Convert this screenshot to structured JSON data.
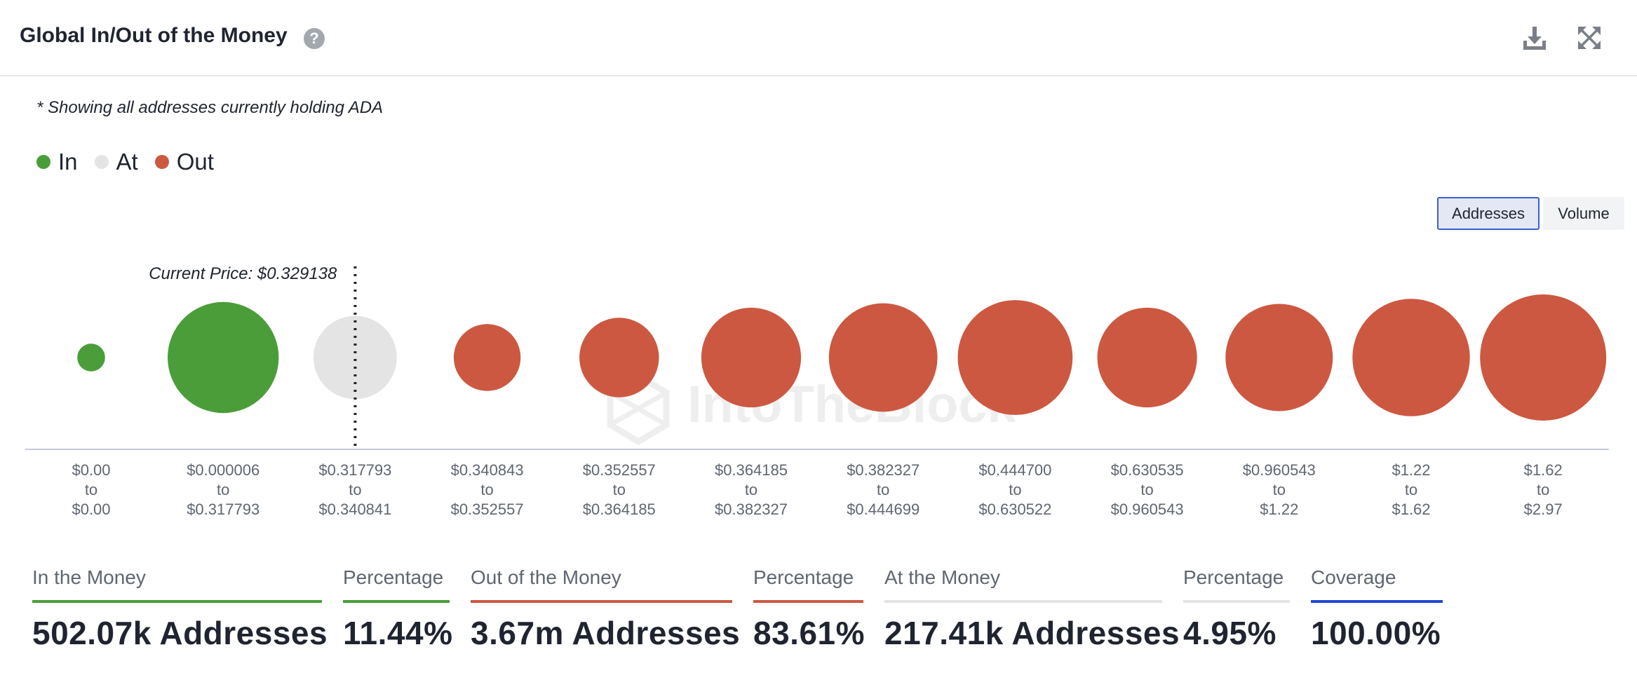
{
  "header": {
    "title": "Global In/Out of the Money",
    "help_glyph": "?"
  },
  "icons": {
    "help": "question-circle-icon",
    "download": "download-icon",
    "fullscreen": "expand-arrows-icon"
  },
  "note": "* Showing all addresses currently holding ADA",
  "legend": [
    {
      "label": "In",
      "color": "#4a9d39"
    },
    {
      "label": "At",
      "color": "#e4e4e4"
    },
    {
      "label": "Out",
      "color": "#cc5841"
    }
  ],
  "toggle": {
    "addresses": "Addresses",
    "volume": "Volume",
    "selected": "Addresses"
  },
  "watermark": "IntoTheBlock",
  "chart_data": {
    "type": "bubble",
    "current_price_label": "Current Price: $0.329138",
    "current_price": 0.329138,
    "current_price_bucket_index": 2,
    "value_dimension": "Addresses (relative bubble size, estimated)",
    "buckets": [
      {
        "from": "$0.00",
        "to": "$0.00",
        "status": "In",
        "relative_size": 0.22
      },
      {
        "from": "$0.000006",
        "to": "$0.317793",
        "status": "In",
        "relative_size": 0.88
      },
      {
        "from": "$0.317793",
        "to": "$0.340841",
        "status": "At",
        "relative_size": 0.66
      },
      {
        "from": "$0.340843",
        "to": "$0.352557",
        "status": "Out",
        "relative_size": 0.53
      },
      {
        "from": "$0.352557",
        "to": "$0.364185",
        "status": "Out",
        "relative_size": 0.63
      },
      {
        "from": "$0.364185",
        "to": "$0.382327",
        "status": "Out",
        "relative_size": 0.79
      },
      {
        "from": "$0.382327",
        "to": "$0.444699",
        "status": "Out",
        "relative_size": 0.86
      },
      {
        "from": "$0.444700",
        "to": "$0.630522",
        "status": "Out",
        "relative_size": 0.91
      },
      {
        "from": "$0.630535",
        "to": "$0.960543",
        "status": "Out",
        "relative_size": 0.79
      },
      {
        "from": "$0.960543",
        "to": "$1.22",
        "status": "Out",
        "relative_size": 0.85
      },
      {
        "from": "$1.22",
        "to": "$1.62",
        "status": "Out",
        "relative_size": 0.93
      },
      {
        "from": "$1.62",
        "to": "$2.97",
        "status": "Out",
        "relative_size": 1.0
      }
    ],
    "range_joiner": "to",
    "colors": {
      "In": "#4a9d39",
      "At": "#e4e4e4",
      "Out": "#cc5841"
    }
  },
  "stats": [
    {
      "label": "In the Money",
      "value": "502.07k Addresses",
      "color": "#4a9d39"
    },
    {
      "label": "Percentage",
      "value": "11.44%",
      "color": "#4a9d39"
    },
    {
      "label": "Out of the Money",
      "value": "3.67m Addresses",
      "color": "#cc5841"
    },
    {
      "label": "Percentage",
      "value": "83.61%",
      "color": "#cc5841"
    },
    {
      "label": "At the Money",
      "value": "217.41k Addresses",
      "color": "#e4e4e4"
    },
    {
      "label": "Percentage",
      "value": "4.95%",
      "color": "#e4e4e4"
    },
    {
      "label": "Coverage",
      "value": "100.00%",
      "color": "#2446d6"
    }
  ]
}
